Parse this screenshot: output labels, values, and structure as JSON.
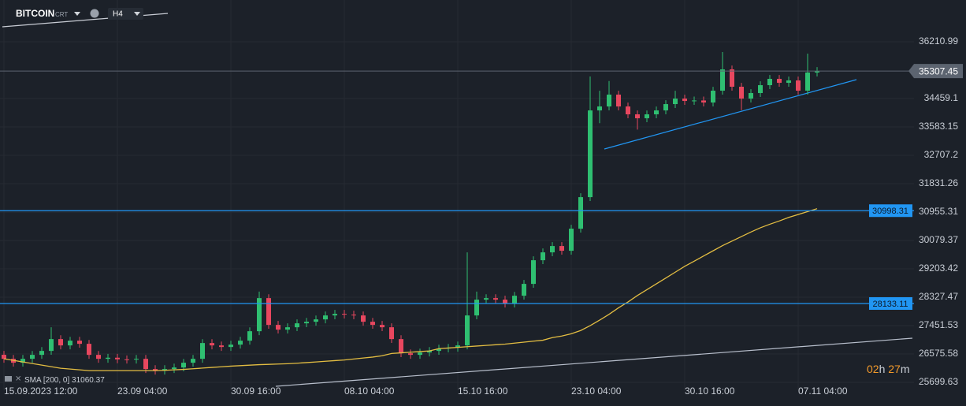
{
  "header": {
    "symbol": "BITCOIN",
    "symbol_suffix": "CRT",
    "timeframe": "H4"
  },
  "countdown": {
    "hours": "02",
    "hours_unit": "h",
    "minutes": "27",
    "minutes_unit": "m"
  },
  "chart_data": {
    "type": "candlestick",
    "categories": [
      "15.09.2023 12:00",
      null,
      null,
      null,
      null,
      null,
      null,
      null,
      null,
      null,
      null,
      null,
      "23.09 04:00",
      null,
      null,
      null,
      null,
      null,
      null,
      null,
      null,
      null,
      null,
      null,
      "30.09 16:00",
      null,
      null,
      null,
      null,
      null,
      null,
      null,
      null,
      null,
      null,
      null,
      "08.10 04:00",
      null,
      null,
      null,
      null,
      null,
      null,
      null,
      null,
      null,
      null,
      null,
      "15.10 16:00",
      null,
      null,
      null,
      null,
      null,
      null,
      null,
      null,
      null,
      null,
      null,
      "23.10 04:00",
      null,
      null,
      null,
      null,
      null,
      null,
      null,
      null,
      null,
      null,
      null,
      "30.10 16:00",
      null,
      null,
      null,
      null,
      null,
      null,
      null,
      null,
      null,
      null,
      null,
      "07.11 04:00",
      null,
      null
    ],
    "open": [
      26550,
      26426,
      26305,
      26426,
      26548,
      26670,
      27035,
      26840,
      26986,
      26889,
      26548,
      26426,
      26460,
      26410,
      26402,
      26426,
      26110,
      26061,
      26110,
      26159,
      26305,
      26426,
      26913,
      26840,
      26791,
      26864,
      26986,
      27278,
      28300,
      27473,
      27327,
      27400,
      27522,
      27570,
      27643,
      27765,
      27814,
      27790,
      27765,
      27570,
      27473,
      27400,
      27035,
      26597,
      26548,
      26621,
      26670,
      26743,
      26767,
      26840,
      27765,
      28252,
      28300,
      28252,
      28130,
      28373,
      28739,
      29469,
      29712,
      29907,
      29761,
      30442,
      31416,
      34093,
      34215,
      34580,
      34215,
      33972,
      33850,
      33972,
      34093,
      34288,
      34458,
      34385,
      34400,
      34337,
      34702,
      35359,
      34824,
      34458,
      34629,
      34872,
      35067,
      34945,
      35018,
      34702,
      35262
    ],
    "high": [
      26670,
      26546,
      26546,
      26668,
      26790,
      27400,
      27155,
      27106,
      27106,
      27009,
      26668,
      26580,
      26580,
      26530,
      26546,
      26546,
      26230,
      26230,
      26279,
      26425,
      26546,
      27033,
      27033,
      26960,
      26984,
      27106,
      27398,
      28500,
      28420,
      27593,
      27520,
      27642,
      27690,
      27763,
      27885,
      27934,
      27934,
      27910,
      27885,
      27690,
      27593,
      27520,
      27155,
      26717,
      26741,
      26790,
      26863,
      26887,
      26960,
      29712,
      28500,
      28420,
      28420,
      28372,
      28493,
      28859,
      29589,
      29832,
      30027,
      30027,
      30562,
      31536,
      35140,
      34700,
      35000,
      34700,
      34335,
      34092,
      34092,
      34213,
      34408,
      34700,
      34578,
      34520,
      34520,
      34822,
      35895,
      35479,
      34944,
      34749,
      34992,
      35187,
      35187,
      35138,
      35138,
      35846,
      35430
    ],
    "low": [
      26306,
      26185,
      26185,
      26306,
      26428,
      26550,
      26720,
      26720,
      26769,
      26428,
      26306,
      26306,
      26290,
      26282,
      26282,
      25990,
      25941,
      25941,
      25990,
      26039,
      26185,
      26306,
      26720,
      26671,
      26671,
      26744,
      26866,
      27158,
      27353,
      27207,
      27207,
      27280,
      27402,
      27450,
      27523,
      27645,
      27670,
      27645,
      27450,
      27353,
      27280,
      26915,
      26477,
      26428,
      26428,
      26501,
      26550,
      26623,
      26647,
      26720,
      27645,
      28132,
      28132,
      28010,
      28010,
      28253,
      28619,
      29349,
      29592,
      29641,
      29641,
      30322,
      31296,
      33700,
      34095,
      34095,
      33852,
      33500,
      33730,
      33852,
      33973,
      34168,
      34265,
      34265,
      34217,
      34217,
      34582,
      34704,
      34100,
      34338,
      34509,
      34752,
      34825,
      34825,
      34582,
      34582,
      35142
    ],
    "close": [
      26426,
      26305,
      26426,
      26548,
      26670,
      27035,
      26840,
      26986,
      26889,
      26548,
      26426,
      26460,
      26410,
      26402,
      26426,
      26110,
      26061,
      26110,
      26159,
      26305,
      26426,
      26913,
      26840,
      26791,
      26864,
      26986,
      27278,
      28300,
      27473,
      27327,
      27400,
      27522,
      27570,
      27643,
      27765,
      27814,
      27790,
      27765,
      27570,
      27473,
      27400,
      27035,
      26597,
      26548,
      26621,
      26670,
      26743,
      26767,
      26840,
      27765,
      28252,
      28300,
      28252,
      28130,
      28373,
      28739,
      29469,
      29712,
      29907,
      29761,
      30442,
      31416,
      34093,
      34215,
      34580,
      34215,
      33972,
      33850,
      33972,
      34093,
      34288,
      34458,
      34385,
      34400,
      34337,
      34702,
      35359,
      34824,
      34458,
      34629,
      34872,
      35067,
      34945,
      35018,
      34702,
      35262,
      35307.45
    ],
    "up_color": "#2fbf71",
    "down_color": "#e8475f",
    "sma": {
      "name": "SMA [200, 0]",
      "color": "#e3bd42",
      "values": [
        26426,
        26377,
        26329,
        26280,
        26231,
        26183,
        26134,
        26110,
        26085,
        26061,
        26061,
        26061,
        26061,
        26061,
        26061,
        26061,
        26061,
        26070,
        26085,
        26100,
        26120,
        26140,
        26160,
        26180,
        26200,
        26215,
        26230,
        26245,
        26255,
        26265,
        26275,
        26290,
        26310,
        26330,
        26350,
        26370,
        26390,
        26420,
        26450,
        26480,
        26520,
        26590,
        26610,
        26630,
        26650,
        26670,
        26740,
        26760,
        26780,
        26800,
        26820,
        26840,
        26860,
        26880,
        26910,
        26940,
        26970,
        27000,
        27080,
        27130,
        27200,
        27300,
        27450,
        27620,
        27800,
        28000,
        28180,
        28380,
        28560,
        28740,
        28920,
        29100,
        29280,
        29440,
        29600,
        29760,
        29920,
        30060,
        30200,
        30340,
        30470,
        30580,
        30680,
        30790,
        30880,
        30970,
        31060.37
      ]
    },
    "levels": [
      {
        "value": 30998.31,
        "color": "#2196f3"
      },
      {
        "value": 28133.11,
        "color": "#2196f3"
      }
    ],
    "last_price_color": "#5c6470",
    "ylim": [
      25456.3,
      37500.8
    ],
    "yticks": [
      36210.99,
      34459.1,
      33583.15,
      32707.2,
      31831.26,
      30955.31,
      30079.37,
      29203.42,
      28327.47,
      27451.53,
      26575.58,
      25699.63
    ],
    "grid": true
  }
}
